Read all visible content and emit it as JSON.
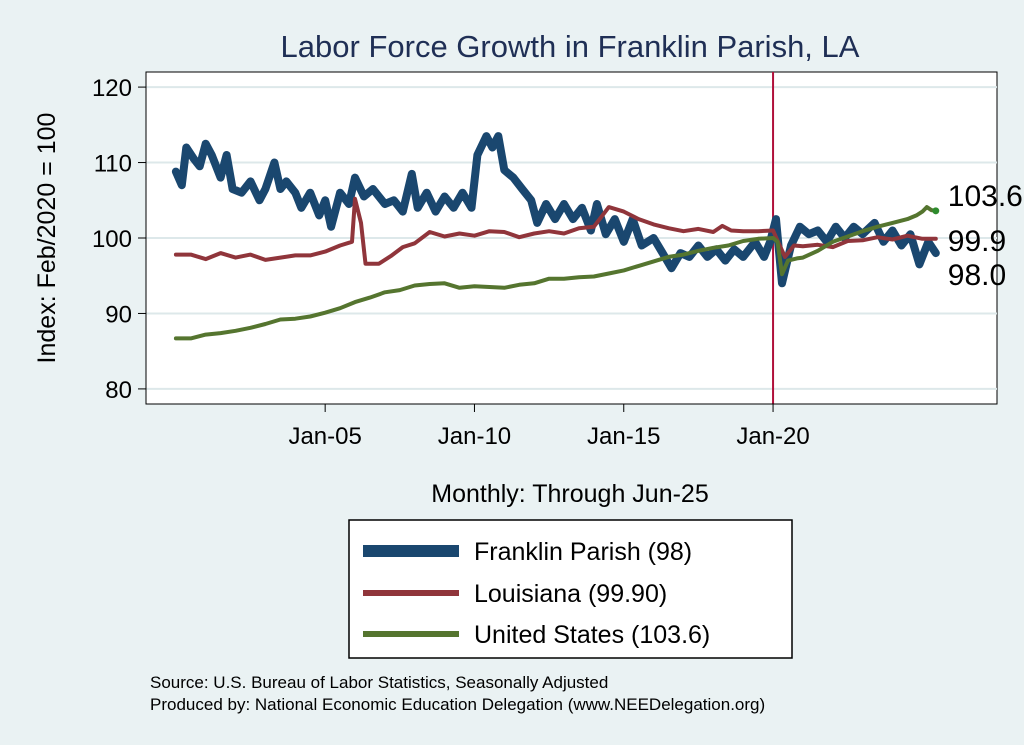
{
  "chart_data": {
    "type": "line",
    "title": "Labor Force Growth in Franklin Parish, LA",
    "xlabel": "Monthly: Through Jun-25",
    "ylabel": "Index: Feb/2020 = 100",
    "ylim": [
      78,
      122
    ],
    "xlim": [
      1999.0,
      2027.5
    ],
    "yticks": [
      80,
      90,
      100,
      110,
      120
    ],
    "ytick_labels": [
      "80",
      "90",
      "100",
      "110",
      "120"
    ],
    "xticks": [
      2005.0,
      2010.0,
      2015.0,
      2020.0
    ],
    "xtick_labels": [
      "Jan-05",
      "Jan-10",
      "Jan-15",
      "Jan-20"
    ],
    "reference_line": {
      "x": 2020.0,
      "color": "#b0103a"
    },
    "grid": "horizontal",
    "series": [
      {
        "name": "Franklin Parish",
        "legend": "Franklin Parish  (98)",
        "color": "#1a476f",
        "width": 8,
        "end_label": "98.0",
        "points": [
          [
            2000.0,
            108.8
          ],
          [
            2000.2,
            107.0
          ],
          [
            2000.35,
            112.0
          ],
          [
            2000.6,
            110.5
          ],
          [
            2000.8,
            109.5
          ],
          [
            2001.0,
            112.5
          ],
          [
            2001.2,
            111.0
          ],
          [
            2001.5,
            108.0
          ],
          [
            2001.7,
            111.0
          ],
          [
            2001.9,
            106.5
          ],
          [
            2002.2,
            106.0
          ],
          [
            2002.5,
            107.5
          ],
          [
            2002.8,
            105.0
          ],
          [
            2003.0,
            106.5
          ],
          [
            2003.3,
            110.0
          ],
          [
            2003.5,
            106.5
          ],
          [
            2003.7,
            107.5
          ],
          [
            2004.0,
            106.0
          ],
          [
            2004.2,
            104.0
          ],
          [
            2004.5,
            106.0
          ],
          [
            2004.8,
            103.0
          ],
          [
            2005.0,
            105.0
          ],
          [
            2005.2,
            101.5
          ],
          [
            2005.5,
            106.0
          ],
          [
            2005.8,
            104.5
          ],
          [
            2006.0,
            108.0
          ],
          [
            2006.3,
            105.5
          ],
          [
            2006.6,
            106.5
          ],
          [
            2007.0,
            104.5
          ],
          [
            2007.3,
            105.0
          ],
          [
            2007.6,
            103.5
          ],
          [
            2007.9,
            108.5
          ],
          [
            2008.1,
            104.0
          ],
          [
            2008.4,
            106.0
          ],
          [
            2008.7,
            103.5
          ],
          [
            2009.0,
            105.5
          ],
          [
            2009.3,
            104.0
          ],
          [
            2009.6,
            106.0
          ],
          [
            2009.9,
            104.0
          ],
          [
            2010.1,
            111.0
          ],
          [
            2010.4,
            113.5
          ],
          [
            2010.6,
            112.0
          ],
          [
            2010.8,
            113.5
          ],
          [
            2011.0,
            109.0
          ],
          [
            2011.3,
            108.0
          ],
          [
            2011.6,
            106.5
          ],
          [
            2011.9,
            105.0
          ],
          [
            2012.1,
            102.0
          ],
          [
            2012.4,
            104.5
          ],
          [
            2012.7,
            102.5
          ],
          [
            2013.0,
            104.5
          ],
          [
            2013.3,
            102.5
          ],
          [
            2013.6,
            104.0
          ],
          [
            2013.9,
            101.0
          ],
          [
            2014.1,
            104.5
          ],
          [
            2014.4,
            100.5
          ],
          [
            2014.7,
            102.5
          ],
          [
            2015.0,
            99.5
          ],
          [
            2015.3,
            102.5
          ],
          [
            2015.6,
            99.0
          ],
          [
            2016.0,
            100.0
          ],
          [
            2016.3,
            98.0
          ],
          [
            2016.6,
            96.0
          ],
          [
            2016.9,
            98.0
          ],
          [
            2017.2,
            97.5
          ],
          [
            2017.5,
            99.0
          ],
          [
            2017.8,
            97.5
          ],
          [
            2018.1,
            98.5
          ],
          [
            2018.4,
            97.0
          ],
          [
            2018.7,
            98.5
          ],
          [
            2019.0,
            97.5
          ],
          [
            2019.4,
            99.5
          ],
          [
            2019.7,
            97.5
          ],
          [
            2019.9,
            99.5
          ],
          [
            2020.1,
            102.5
          ],
          [
            2020.3,
            94.0
          ],
          [
            2020.6,
            99.0
          ],
          [
            2020.9,
            101.5
          ],
          [
            2021.2,
            100.5
          ],
          [
            2021.5,
            101.0
          ],
          [
            2021.8,
            99.5
          ],
          [
            2022.1,
            101.5
          ],
          [
            2022.4,
            100.0
          ],
          [
            2022.7,
            101.5
          ],
          [
            2023.0,
            100.5
          ],
          [
            2023.4,
            102.0
          ],
          [
            2023.7,
            99.5
          ],
          [
            2024.0,
            101.0
          ],
          [
            2024.3,
            99.0
          ],
          [
            2024.6,
            100.5
          ],
          [
            2024.9,
            96.5
          ],
          [
            2025.2,
            99.5
          ],
          [
            2025.45,
            98.0
          ]
        ]
      },
      {
        "name": "Louisiana",
        "legend": "Louisiana (99.90)",
        "color": "#90353b",
        "width": 4,
        "end_label": "99.9",
        "points": [
          [
            2000.0,
            97.8
          ],
          [
            2000.5,
            97.8
          ],
          [
            2001.0,
            97.2
          ],
          [
            2001.5,
            98.0
          ],
          [
            2002.0,
            97.4
          ],
          [
            2002.5,
            97.8
          ],
          [
            2003.0,
            97.1
          ],
          [
            2003.5,
            97.4
          ],
          [
            2004.0,
            97.7
          ],
          [
            2004.5,
            97.7
          ],
          [
            2005.0,
            98.2
          ],
          [
            2005.5,
            99.0
          ],
          [
            2005.9,
            99.5
          ],
          [
            2006.0,
            105.2
          ],
          [
            2006.2,
            102.0
          ],
          [
            2006.35,
            96.6
          ],
          [
            2006.8,
            96.6
          ],
          [
            2007.2,
            97.6
          ],
          [
            2007.6,
            98.8
          ],
          [
            2008.0,
            99.3
          ],
          [
            2008.5,
            100.8
          ],
          [
            2009.0,
            100.2
          ],
          [
            2009.5,
            100.6
          ],
          [
            2010.0,
            100.3
          ],
          [
            2010.5,
            100.9
          ],
          [
            2011.0,
            100.8
          ],
          [
            2011.5,
            100.1
          ],
          [
            2012.0,
            100.6
          ],
          [
            2012.5,
            100.9
          ],
          [
            2013.0,
            100.6
          ],
          [
            2013.5,
            101.3
          ],
          [
            2014.0,
            101.5
          ],
          [
            2014.5,
            104.1
          ],
          [
            2015.0,
            103.5
          ],
          [
            2015.5,
            102.5
          ],
          [
            2016.0,
            101.8
          ],
          [
            2016.5,
            101.3
          ],
          [
            2017.0,
            100.9
          ],
          [
            2017.5,
            101.2
          ],
          [
            2018.0,
            100.8
          ],
          [
            2018.3,
            101.6
          ],
          [
            2018.6,
            101.0
          ],
          [
            2019.0,
            100.9
          ],
          [
            2019.5,
            100.9
          ],
          [
            2020.0,
            101.0
          ],
          [
            2020.2,
            99.2
          ],
          [
            2020.4,
            97.5
          ],
          [
            2020.7,
            99.0
          ],
          [
            2021.0,
            98.9
          ],
          [
            2021.5,
            99.1
          ],
          [
            2022.0,
            98.8
          ],
          [
            2022.5,
            99.6
          ],
          [
            2023.0,
            99.7
          ],
          [
            2023.5,
            100.1
          ],
          [
            2024.0,
            99.8
          ],
          [
            2024.5,
            100.3
          ],
          [
            2025.0,
            99.9
          ],
          [
            2025.45,
            99.9
          ]
        ]
      },
      {
        "name": "United States",
        "legend": "United States (103.6)",
        "color": "#55752f",
        "width": 4,
        "end_label": "103.6",
        "points": [
          [
            2000.0,
            86.7
          ],
          [
            2000.5,
            86.7
          ],
          [
            2001.0,
            87.2
          ],
          [
            2001.5,
            87.4
          ],
          [
            2002.0,
            87.7
          ],
          [
            2002.5,
            88.1
          ],
          [
            2003.0,
            88.6
          ],
          [
            2003.5,
            89.2
          ],
          [
            2004.0,
            89.3
          ],
          [
            2004.5,
            89.6
          ],
          [
            2005.0,
            90.1
          ],
          [
            2005.5,
            90.7
          ],
          [
            2006.0,
            91.5
          ],
          [
            2006.5,
            92.1
          ],
          [
            2007.0,
            92.8
          ],
          [
            2007.5,
            93.1
          ],
          [
            2008.0,
            93.7
          ],
          [
            2008.5,
            93.9
          ],
          [
            2009.0,
            94.0
          ],
          [
            2009.5,
            93.4
          ],
          [
            2010.0,
            93.6
          ],
          [
            2010.5,
            93.5
          ],
          [
            2011.0,
            93.4
          ],
          [
            2011.5,
            93.8
          ],
          [
            2012.0,
            94.0
          ],
          [
            2012.5,
            94.6
          ],
          [
            2013.0,
            94.6
          ],
          [
            2013.5,
            94.8
          ],
          [
            2014.0,
            94.9
          ],
          [
            2014.5,
            95.3
          ],
          [
            2015.0,
            95.7
          ],
          [
            2015.5,
            96.3
          ],
          [
            2016.0,
            96.9
          ],
          [
            2016.5,
            97.5
          ],
          [
            2017.0,
            97.8
          ],
          [
            2017.5,
            98.3
          ],
          [
            2018.0,
            98.7
          ],
          [
            2018.5,
            99.0
          ],
          [
            2019.0,
            99.6
          ],
          [
            2019.5,
            99.9
          ],
          [
            2020.0,
            100.0
          ],
          [
            2020.15,
            99.5
          ],
          [
            2020.3,
            95.2
          ],
          [
            2020.5,
            97.0
          ],
          [
            2020.8,
            97.3
          ],
          [
            2021.0,
            97.4
          ],
          [
            2021.5,
            98.3
          ],
          [
            2022.0,
            99.5
          ],
          [
            2022.5,
            100.2
          ],
          [
            2023.0,
            100.9
          ],
          [
            2023.5,
            101.5
          ],
          [
            2024.0,
            102.0
          ],
          [
            2024.5,
            102.5
          ],
          [
            2024.8,
            103.0
          ],
          [
            2025.0,
            103.5
          ],
          [
            2025.15,
            104.1
          ],
          [
            2025.3,
            103.7
          ],
          [
            2025.45,
            103.6
          ]
        ]
      }
    ]
  },
  "footer": {
    "source": "Source: U.S. Bureau of Labor Statistics, Seasonally Adjusted",
    "produced_by": "Produced by: National Economic Education Delegation (www.NEEDelegation.org)"
  }
}
